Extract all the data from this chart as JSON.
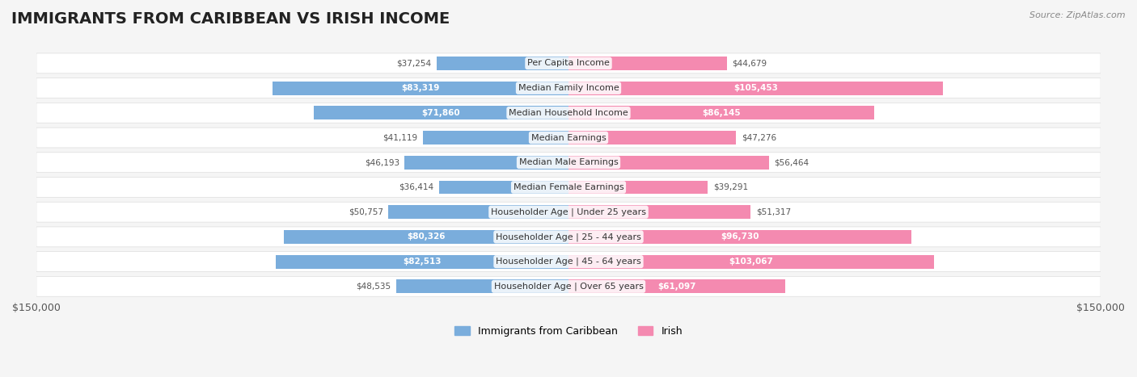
{
  "title": "IMMIGRANTS FROM CARIBBEAN VS IRISH INCOME",
  "source": "Source: ZipAtlas.com",
  "categories": [
    "Per Capita Income",
    "Median Family Income",
    "Median Household Income",
    "Median Earnings",
    "Median Male Earnings",
    "Median Female Earnings",
    "Householder Age | Under 25 years",
    "Householder Age | 25 - 44 years",
    "Householder Age | 45 - 64 years",
    "Householder Age | Over 65 years"
  ],
  "caribbean_values": [
    37254,
    83319,
    71860,
    41119,
    46193,
    36414,
    50757,
    80326,
    82513,
    48535
  ],
  "irish_values": [
    44679,
    105453,
    86145,
    47276,
    56464,
    39291,
    51317,
    96730,
    103067,
    61097
  ],
  "caribbean_color": "#7aaddc",
  "irish_color": "#f48ab0",
  "caribbean_color_dark": "#4a86c0",
  "irish_color_dark": "#e8558a",
  "background_color": "#f5f5f5",
  "row_bg_color": "#ffffff",
  "max_value": 150000,
  "xlabel_left": "$150,000",
  "xlabel_right": "$150,000",
  "legend_caribbean": "Immigrants from Caribbean",
  "legend_irish": "Irish",
  "title_fontsize": 14,
  "label_fontsize": 8,
  "value_fontsize": 7.5
}
